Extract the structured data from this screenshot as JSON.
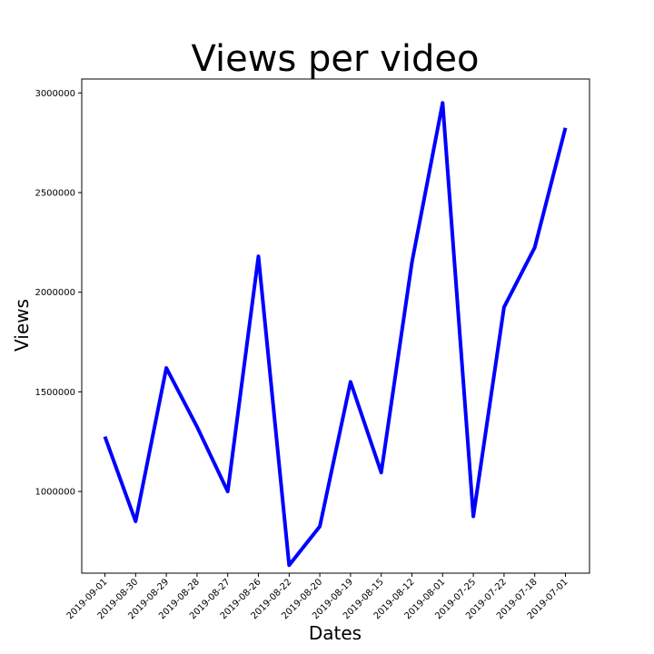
{
  "chart_data": {
    "type": "line",
    "title": "Views per video",
    "xlabel": "Dates",
    "ylabel": "Views",
    "categories": [
      "2019-09-01",
      "2019-08-30",
      "2019-08-29",
      "2019-08-28",
      "2019-08-27",
      "2019-08-26",
      "2019-08-22",
      "2019-08-20",
      "2019-08-19",
      "2019-08-15",
      "2019-08-12",
      "2019-08-01",
      "2019-07-25",
      "2019-07-22",
      "2019-07-18",
      "2019-07-01"
    ],
    "series": [
      {
        "values": [
          1275000,
          850000,
          1620000,
          1325000,
          1000000,
          2180000,
          630000,
          825000,
          1550000,
          1095000,
          2150000,
          2950000,
          875000,
          1925000,
          2225000,
          2825000
        ],
        "color": "#0000ff"
      }
    ],
    "ylim": [
      590000,
      3070000
    ],
    "yticks": [
      1000000,
      1500000,
      2000000,
      2500000,
      3000000
    ],
    "ytick_labels": [
      "1000000",
      "1500000",
      "2000000",
      "2500000",
      "3000000"
    ],
    "grid": false,
    "legend": false
  }
}
